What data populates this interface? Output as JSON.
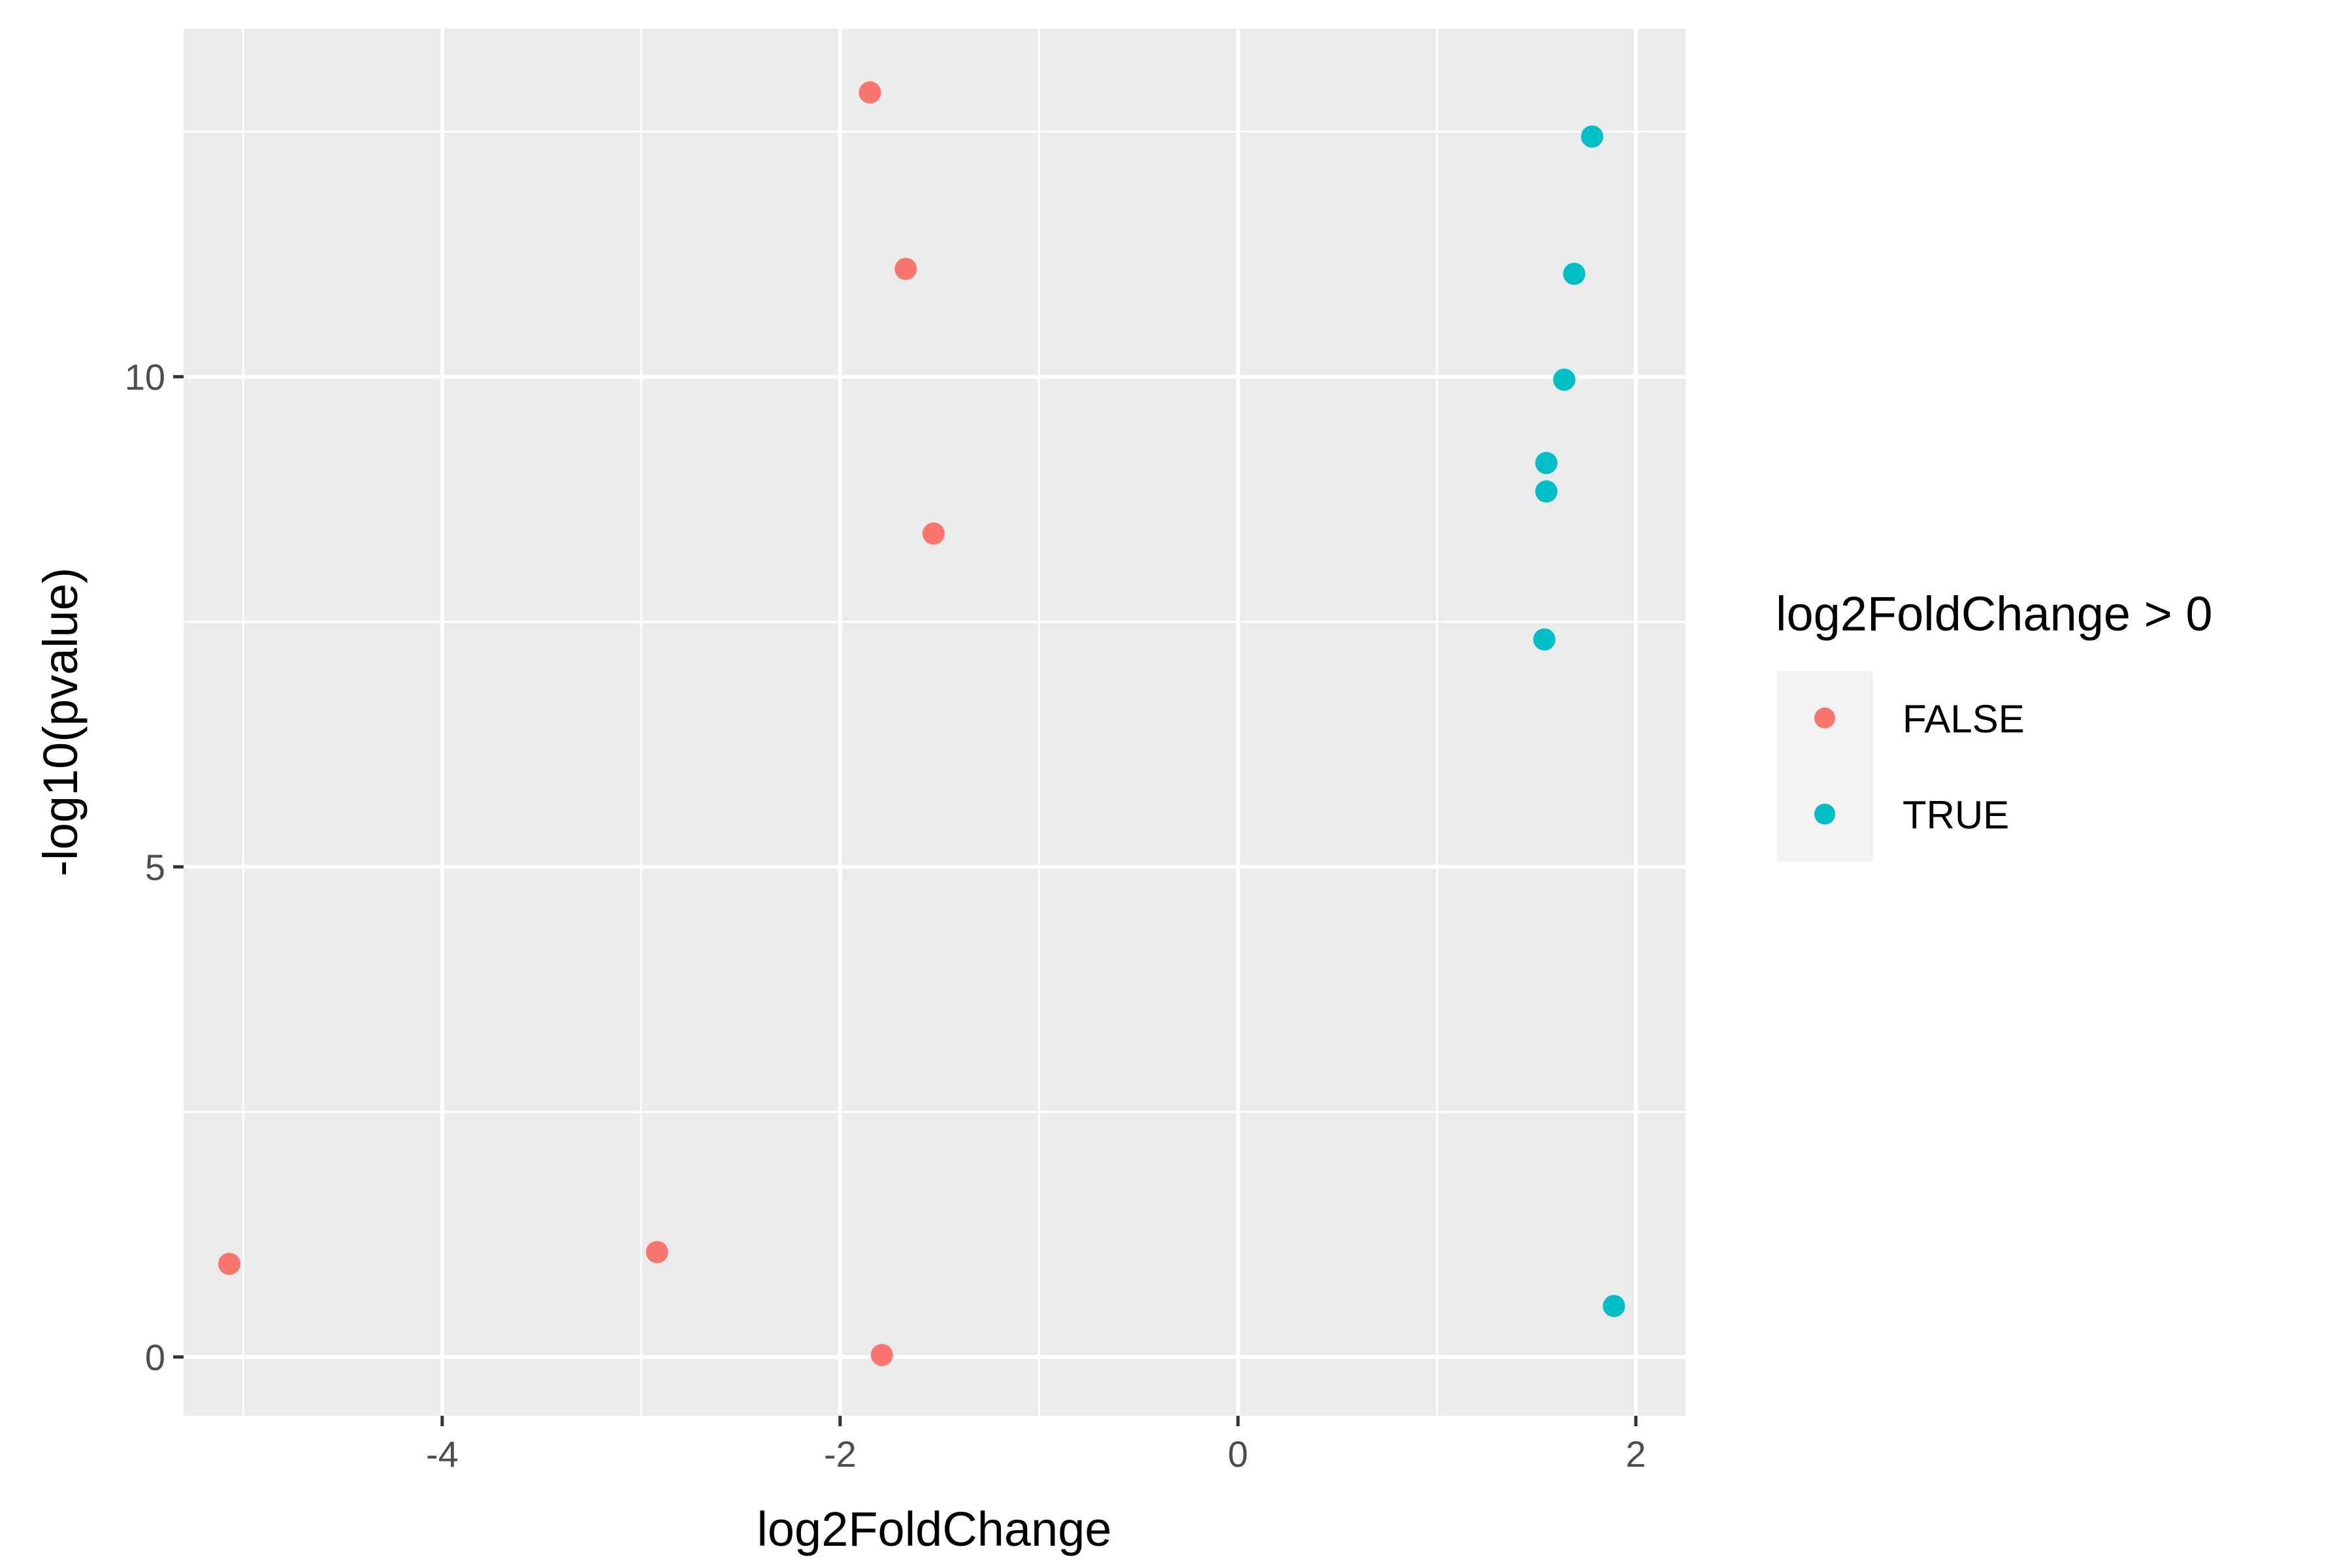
{
  "chart_data": {
    "type": "scatter",
    "xlabel": "log2FoldChange",
    "ylabel": "-log10(pvalue)",
    "xlim": [
      -5.3,
      2.25
    ],
    "ylim": [
      -0.6,
      13.55
    ],
    "x_ticks": [
      -4,
      -2,
      0,
      2
    ],
    "x_tick_labels": [
      "-4",
      "-2",
      "0",
      "2"
    ],
    "y_ticks": [
      0,
      5,
      10
    ],
    "y_tick_labels": [
      "0",
      "5",
      "10"
    ],
    "grid": true,
    "legend": {
      "title": "log2FoldChange > 0",
      "placement": "right",
      "entries": [
        {
          "label": "FALSE",
          "color": "#F8766D"
        },
        {
          "label": "TRUE",
          "color": "#00BFC4"
        }
      ]
    },
    "series": [
      {
        "name": "FALSE",
        "color": "#F8766D",
        "points": [
          {
            "x": -1.85,
            "y": 12.9
          },
          {
            "x": -1.67,
            "y": 11.1
          },
          {
            "x": -1.53,
            "y": 8.4
          },
          {
            "x": -5.07,
            "y": 0.95
          },
          {
            "x": -2.92,
            "y": 1.07
          },
          {
            "x": -1.79,
            "y": 0.02
          }
        ]
      },
      {
        "name": "TRUE",
        "color": "#00BFC4",
        "points": [
          {
            "x": 1.78,
            "y": 12.45
          },
          {
            "x": 1.69,
            "y": 11.05
          },
          {
            "x": 1.64,
            "y": 9.97
          },
          {
            "x": 1.55,
            "y": 9.12
          },
          {
            "x": 1.55,
            "y": 8.83
          },
          {
            "x": 1.54,
            "y": 7.32
          },
          {
            "x": 1.89,
            "y": 0.52
          }
        ]
      }
    ]
  }
}
